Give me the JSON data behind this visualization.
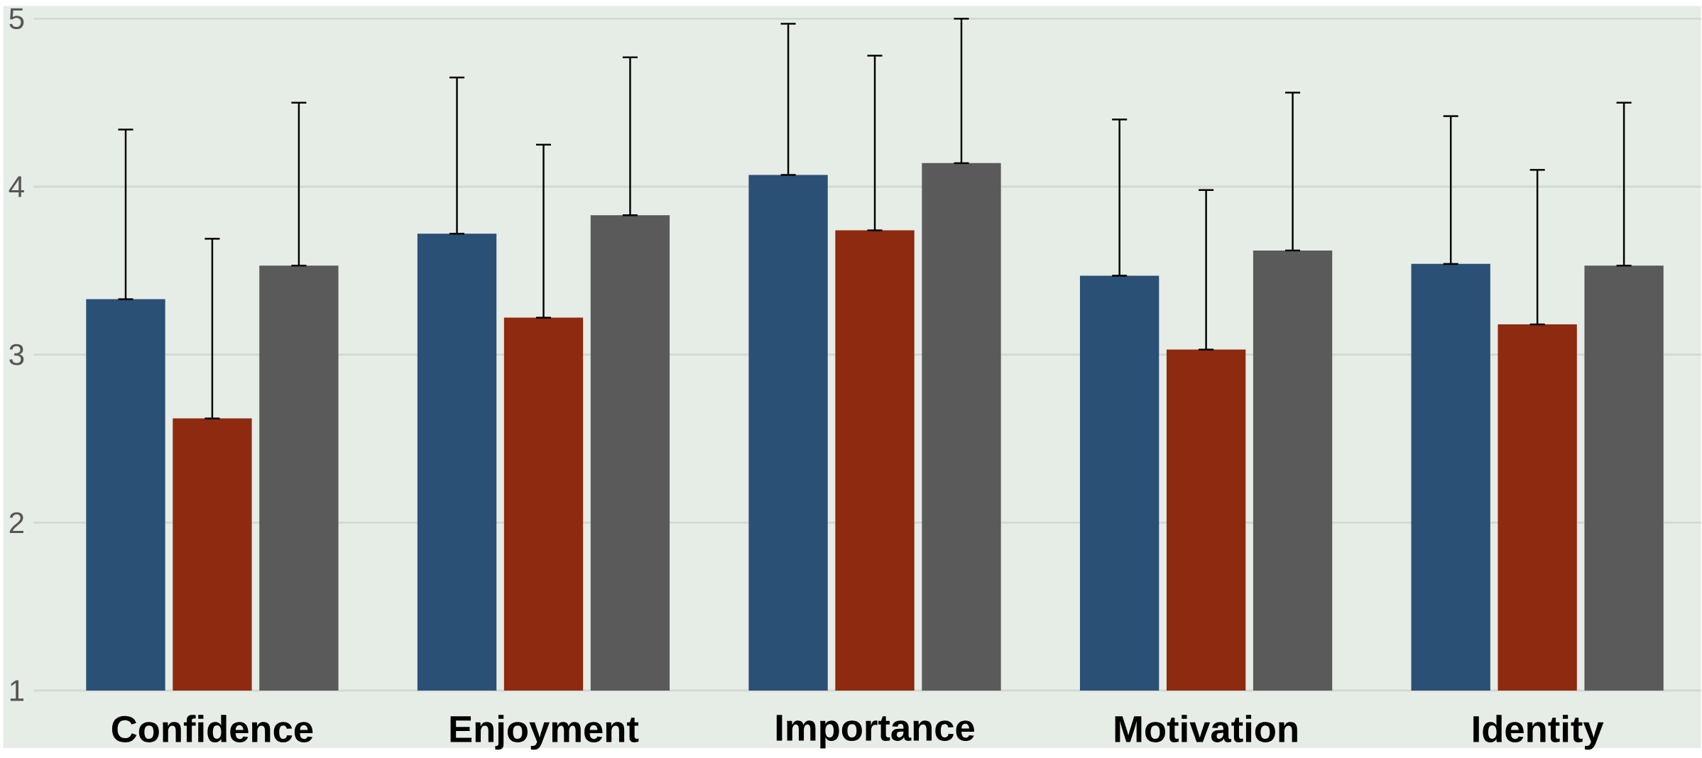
{
  "chart_data": {
    "type": "bar",
    "categories": [
      "Confidence",
      "Enjoyment",
      "Importance",
      "Motivation",
      "Identity"
    ],
    "series": [
      {
        "color": "#2b5075",
        "values": [
          3.33,
          3.72,
          4.07,
          3.47,
          3.54
        ],
        "errors": [
          [
            3.33,
            4.34
          ],
          [
            3.72,
            4.65
          ],
          [
            4.07,
            4.97
          ],
          [
            3.47,
            4.4
          ],
          [
            3.54,
            4.42
          ]
        ]
      },
      {
        "color": "#8e2a10",
        "values": [
          2.62,
          3.22,
          3.74,
          3.03,
          3.18
        ],
        "errors": [
          [
            2.62,
            3.69
          ],
          [
            3.22,
            4.25
          ],
          [
            3.74,
            4.78
          ],
          [
            3.03,
            3.98
          ],
          [
            3.18,
            4.1
          ]
        ]
      },
      {
        "color": "#5a5a5a",
        "values": [
          3.53,
          3.83,
          4.14,
          3.62,
          3.53
        ],
        "errors": [
          [
            3.53,
            4.5
          ],
          [
            3.83,
            4.77
          ],
          [
            4.14,
            5.0
          ],
          [
            3.62,
            4.56
          ],
          [
            3.53,
            4.5
          ]
        ]
      }
    ],
    "ylim": [
      1,
      5
    ],
    "yticks": [
      1,
      2,
      3,
      4,
      5
    ],
    "grid": "y"
  }
}
